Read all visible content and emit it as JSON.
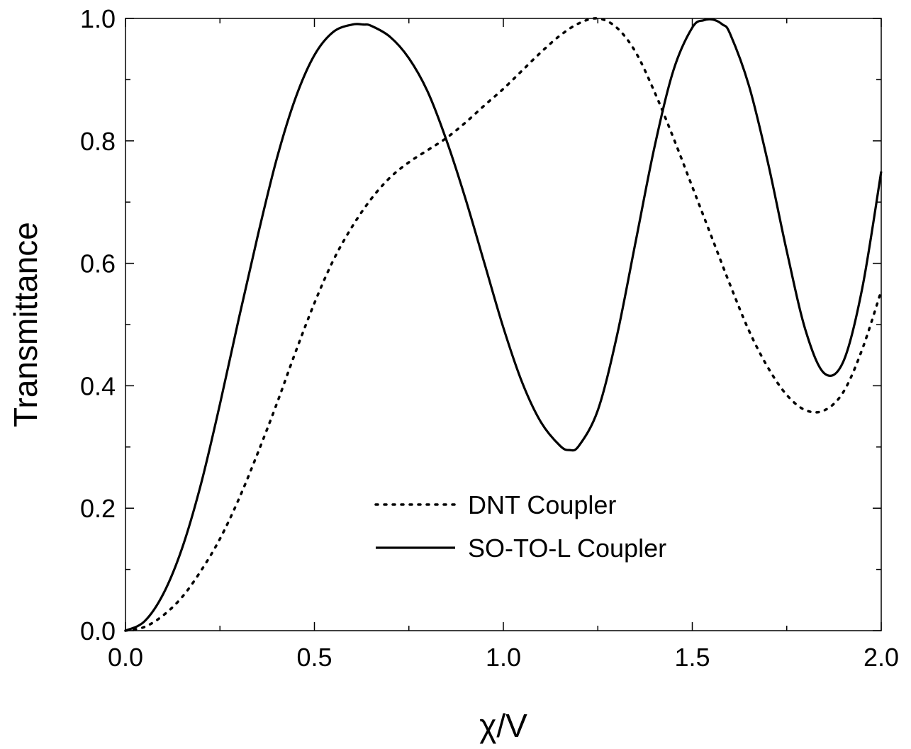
{
  "chart_data": {
    "type": "line",
    "title": "",
    "xlabel": "χ/V",
    "ylabel": "Transmittance",
    "xlim": [
      0.0,
      2.0
    ],
    "ylim": [
      0.0,
      1.0
    ],
    "x_major_ticks": [
      0.0,
      0.5,
      1.0,
      1.5,
      2.0
    ],
    "x_tick_labels": [
      "0.0",
      "0.5",
      "1.0",
      "1.5",
      "2.0"
    ],
    "x_minor_ticks": [
      0.25,
      0.75,
      1.25,
      1.75
    ],
    "y_major_ticks": [
      0.0,
      0.2,
      0.4,
      0.6,
      0.8,
      1.0
    ],
    "y_tick_labels": [
      "0.0",
      "0.2",
      "0.4",
      "0.6",
      "0.8",
      "1.0"
    ],
    "y_minor_ticks": [
      0.1,
      0.3,
      0.5,
      0.7,
      0.9
    ],
    "grid": false,
    "legend_position": "center-bottom",
    "series": [
      {
        "name": "DNT Coupler",
        "style": "dotted",
        "color": "#000000",
        "x": [
          0.0,
          0.05,
          0.1,
          0.15,
          0.2,
          0.25,
          0.3,
          0.35,
          0.4,
          0.45,
          0.5,
          0.55,
          0.6,
          0.65,
          0.7,
          0.75,
          0.8,
          0.85,
          0.9,
          0.95,
          1.0,
          1.05,
          1.1,
          1.15,
          1.2,
          1.25,
          1.3,
          1.35,
          1.4,
          1.45,
          1.5,
          1.55,
          1.6,
          1.65,
          1.7,
          1.75,
          1.8,
          1.85,
          1.9,
          1.95,
          2.0
        ],
        "y": [
          0.0,
          0.006,
          0.025,
          0.055,
          0.098,
          0.15,
          0.215,
          0.29,
          0.37,
          0.455,
          0.535,
          0.605,
          0.66,
          0.705,
          0.74,
          0.765,
          0.785,
          0.805,
          0.83,
          0.858,
          0.885,
          0.915,
          0.945,
          0.972,
          0.992,
          1.0,
          0.985,
          0.945,
          0.88,
          0.805,
          0.725,
          0.645,
          0.565,
          0.49,
          0.43,
          0.385,
          0.36,
          0.36,
          0.39,
          0.46,
          0.555
        ]
      },
      {
        "name": "SO-TO-L Coupler",
        "style": "solid",
        "color": "#000000",
        "x": [
          0.0,
          0.05,
          0.1,
          0.15,
          0.2,
          0.25,
          0.3,
          0.35,
          0.4,
          0.45,
          0.5,
          0.55,
          0.6,
          0.63,
          0.65,
          0.7,
          0.75,
          0.8,
          0.85,
          0.9,
          0.95,
          1.0,
          1.05,
          1.1,
          1.15,
          1.175,
          1.2,
          1.25,
          1.3,
          1.35,
          1.4,
          1.45,
          1.5,
          1.53,
          1.555,
          1.58,
          1.6,
          1.65,
          1.7,
          1.75,
          1.8,
          1.85,
          1.9,
          1.95,
          2.0
        ],
        "y": [
          0.0,
          0.015,
          0.06,
          0.135,
          0.24,
          0.37,
          0.51,
          0.645,
          0.77,
          0.87,
          0.94,
          0.978,
          0.99,
          0.99,
          0.988,
          0.97,
          0.935,
          0.88,
          0.8,
          0.705,
          0.6,
          0.495,
          0.405,
          0.34,
          0.302,
          0.295,
          0.302,
          0.36,
          0.48,
          0.635,
          0.79,
          0.915,
          0.985,
          0.997,
          0.998,
          0.99,
          0.975,
          0.89,
          0.765,
          0.62,
          0.49,
          0.42,
          0.44,
          0.56,
          0.75
        ]
      }
    ]
  }
}
